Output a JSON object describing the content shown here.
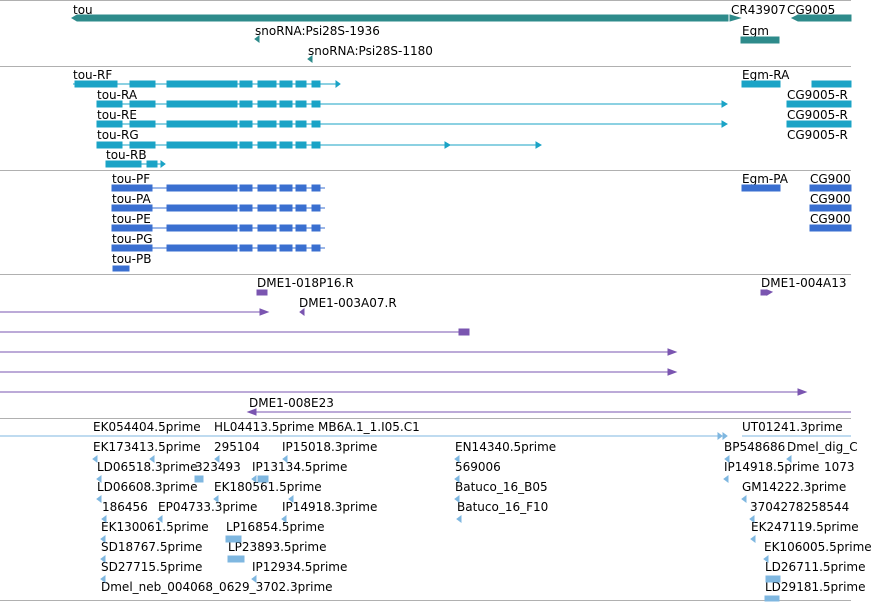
{
  "colors": {
    "gene": "#2e8b8b",
    "rna_light": "#1aa3c6",
    "protein": "#3a6fd0",
    "clone": "#7a55b0",
    "est": "#7fb7e0",
    "separator": "#b0b0b0"
  },
  "tracks": {
    "genes": [
      "tou",
      "CR43907",
      "CG9005",
      "snoRNA:Psi28S-1936",
      "Egm",
      "snoRNA:Psi28S-1180"
    ],
    "transcripts": [
      "tou-RF",
      "Egm-RA",
      "CG9005-R",
      "tou-RA",
      "CG9005-R",
      "tou-RE",
      "CG9005-R",
      "tou-RG",
      "tou-RB"
    ],
    "proteins": [
      "tou-PF",
      "Egm-PA",
      "CG900",
      "tou-PA",
      "CG900",
      "tou-PE",
      "CG900",
      "tou-PG",
      "tou-PB"
    ],
    "clones": [
      "DME1-018P16.R",
      "DME1-004A13",
      "DME1-003A07.R",
      "DME1-008E23"
    ],
    "ests": [
      "EK054404.5prime",
      "HL04413.5prime",
      "MB6A.1_1.I05.C1",
      "UT01241.3prime",
      "EK173413.5prime",
      "295104",
      "IP15018.3prime",
      "EN14340.5prime",
      "BP548686",
      "Dmel_dig_C",
      "LD06518.3prime",
      "323493",
      "IP13134.5prime",
      "569006",
      "IP14918.5prime",
      "1073",
      "LD06608.3prime",
      "EK180561.5prime",
      "Batuco_16_B05",
      "GM14222.3prime",
      "186456",
      "EP04733.3prime",
      "IP14918.3prime",
      "Batuco_16_F10",
      "3704278258544",
      "EK130061.5prime",
      "LP16854.5prime",
      "EK247119.5prime",
      "SD18767.5prime",
      "LP23893.5prime",
      "EK106005.5prime",
      "SD27715.5prime",
      "IP12934.5prime",
      "LD26711.5prime",
      "Dmel_neb_004068_0629_3702.3prime",
      "LD29181.5prime"
    ]
  }
}
